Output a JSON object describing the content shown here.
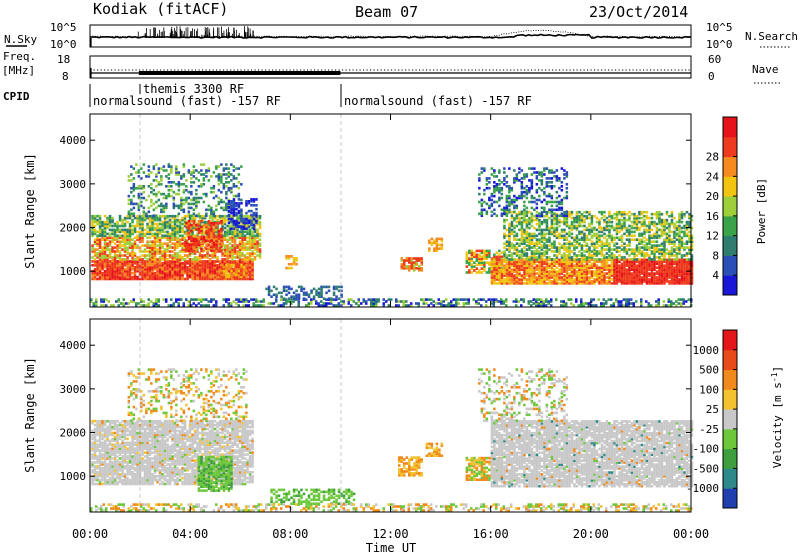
{
  "header": {
    "station": "Kodiak (fitACF)",
    "beam": "Beam 07",
    "date": "23/Oct/2014"
  },
  "chart_data": [
    {
      "type": "line",
      "panel": "noise",
      "left_label": "N.Sky",
      "right_label": "N.Search",
      "left_ticks": [
        "10^5",
        "10^0"
      ],
      "right_ticks": [
        "10^5",
        "10^0"
      ]
    },
    {
      "type": "line",
      "panel": "frequency",
      "left_label_top": "Freq.",
      "left_label_bottom": "[MHz]",
      "left_ticks": [
        "18",
        "8"
      ],
      "right_label": "Nave",
      "right_ticks": [
        "60",
        "0"
      ]
    },
    {
      "type": "table",
      "panel": "cpid",
      "label": "CPID",
      "segments": [
        {
          "start_hour": 0.0,
          "end_hour": 10.0,
          "text": "normalsound (fast) -157 RF"
        },
        {
          "start_hour": 1.95,
          "end_hour": 6.55,
          "text": "themis 3300 RF"
        },
        {
          "start_hour": 10.0,
          "end_hour": 24.0,
          "text": "normalsound (fast) -157 RF"
        }
      ]
    },
    {
      "type": "heatmap",
      "panel": "power",
      "ylabel": "Slant Range [km]",
      "ylim": [
        180,
        4600
      ],
      "yticks": [
        "1000",
        "2000",
        "3000",
        "4000"
      ],
      "colorbar_label": "Power [dB]",
      "colorbar_ticks": [
        "4",
        "8",
        "12",
        "16",
        "20",
        "24",
        "28"
      ],
      "colorbar_colors": [
        "#1a18d6",
        "#2b4fb5",
        "#2e7d6f",
        "#3aa34a",
        "#9ccf3a",
        "#f1c40f",
        "#f58a1f",
        "#ef3b1d",
        "#e6141a"
      ]
    },
    {
      "type": "heatmap",
      "panel": "velocity",
      "ylabel": "Slant Range [km]",
      "ylim": [
        180,
        4600
      ],
      "yticks": [
        "1000",
        "2000",
        "3000",
        "4000"
      ],
      "colorbar_label": "Velocity [m s^-1]",
      "colorbar_ticks": [
        "1000",
        "500",
        "100",
        "25",
        "-25",
        "-100",
        "-500",
        "-1000"
      ],
      "colorbar_colors": [
        "#2040b0",
        "#2e8a8a",
        "#3f9f3f",
        "#6cc83a",
        "#c8c8c8",
        "#f2c230",
        "#f08a1c",
        "#e94b18",
        "#e3171a"
      ],
      "xlabel": "Time UT",
      "xticks": [
        "00:00",
        "04:00",
        "08:00",
        "12:00",
        "16:00",
        "20:00",
        "00:00"
      ],
      "xlim_hours": [
        0,
        24
      ]
    }
  ]
}
